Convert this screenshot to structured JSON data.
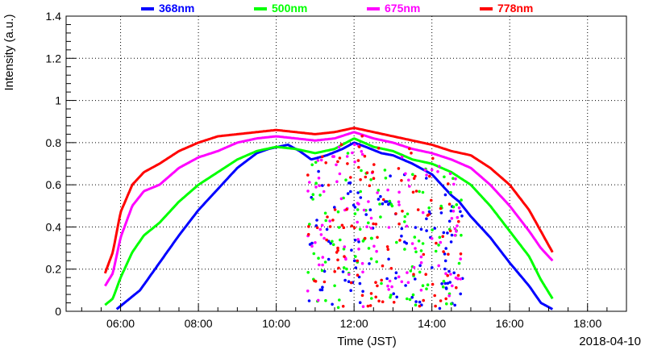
{
  "chart_data": {
    "type": "scatter",
    "xlabel": "Time (JST)",
    "ylabel": "Intensity (a.u.)",
    "date_label": "2018-04-10",
    "x_unit": "hour of day (JST)",
    "xlim": [
      4.6,
      19.0
    ],
    "ylim": [
      0,
      1.4
    ],
    "x_ticks": [
      6,
      8,
      10,
      12,
      14,
      16,
      18
    ],
    "x_tick_labels": [
      "06:00",
      "08:00",
      "10:00",
      "12:00",
      "14:00",
      "16:00",
      "18:00"
    ],
    "y_ticks": [
      0,
      0.2,
      0.4,
      0.6,
      0.8,
      1,
      1.2,
      1.4
    ],
    "y_tick_labels": [
      "0",
      "0.2",
      "0.4",
      "0.6",
      "0.8",
      "1",
      "1.2",
      "1.4"
    ],
    "grid": true,
    "legend_position": "top",
    "series": [
      {
        "name": "368nm",
        "color": "#0000ff",
        "x": [
          5.9,
          6.5,
          7.0,
          7.5,
          8.0,
          8.5,
          9.0,
          9.5,
          9.8,
          10.3,
          10.6,
          10.9,
          11.3,
          11.7,
          12.0,
          12.3,
          12.7,
          13.0,
          13.5,
          14.0,
          14.5,
          14.7,
          15.0,
          15.5,
          16.0,
          16.5,
          16.8,
          17.1
        ],
        "y": [
          0.01,
          0.1,
          0.23,
          0.36,
          0.48,
          0.58,
          0.68,
          0.75,
          0.77,
          0.79,
          0.76,
          0.72,
          0.74,
          0.77,
          0.8,
          0.78,
          0.75,
          0.74,
          0.7,
          0.65,
          0.55,
          0.52,
          0.45,
          0.35,
          0.23,
          0.12,
          0.04,
          0.01
        ]
      },
      {
        "name": "500nm",
        "color": "#00ff00",
        "x": [
          5.6,
          5.8,
          6.0,
          6.3,
          6.6,
          7.0,
          7.5,
          8.0,
          8.5,
          9.0,
          9.5,
          10.0,
          10.5,
          11.0,
          11.5,
          12.0,
          12.5,
          13.0,
          13.5,
          14.0,
          14.5,
          15.0,
          15.5,
          16.0,
          16.5,
          16.8,
          17.1
        ],
        "y": [
          0.03,
          0.06,
          0.16,
          0.28,
          0.36,
          0.42,
          0.52,
          0.6,
          0.66,
          0.72,
          0.76,
          0.78,
          0.77,
          0.75,
          0.77,
          0.82,
          0.78,
          0.76,
          0.72,
          0.7,
          0.66,
          0.6,
          0.5,
          0.38,
          0.26,
          0.15,
          0.06
        ]
      },
      {
        "name": "675nm",
        "color": "#ff00ff",
        "x": [
          5.6,
          5.8,
          6.0,
          6.3,
          6.6,
          7.0,
          7.5,
          8.0,
          8.5,
          9.0,
          9.5,
          10.0,
          10.5,
          11.0,
          11.5,
          12.0,
          12.5,
          13.0,
          13.5,
          14.0,
          14.5,
          15.0,
          15.5,
          16.0,
          16.5,
          16.8,
          17.1
        ],
        "y": [
          0.12,
          0.18,
          0.35,
          0.5,
          0.57,
          0.6,
          0.68,
          0.73,
          0.76,
          0.8,
          0.82,
          0.83,
          0.82,
          0.81,
          0.82,
          0.85,
          0.82,
          0.8,
          0.77,
          0.75,
          0.72,
          0.68,
          0.6,
          0.5,
          0.38,
          0.3,
          0.24
        ]
      },
      {
        "name": "778nm",
        "color": "#ff0000",
        "x": [
          5.6,
          5.8,
          6.0,
          6.3,
          6.6,
          7.0,
          7.5,
          8.0,
          8.5,
          9.0,
          9.5,
          10.0,
          10.5,
          11.0,
          11.5,
          12.0,
          12.5,
          13.0,
          13.5,
          14.0,
          14.5,
          15.0,
          15.5,
          16.0,
          16.5,
          16.8,
          17.1
        ],
        "y": [
          0.18,
          0.28,
          0.47,
          0.6,
          0.66,
          0.7,
          0.76,
          0.8,
          0.83,
          0.84,
          0.85,
          0.86,
          0.85,
          0.84,
          0.85,
          0.87,
          0.85,
          0.83,
          0.81,
          0.79,
          0.76,
          0.74,
          0.68,
          0.6,
          0.48,
          0.38,
          0.28
        ]
      }
    ]
  }
}
